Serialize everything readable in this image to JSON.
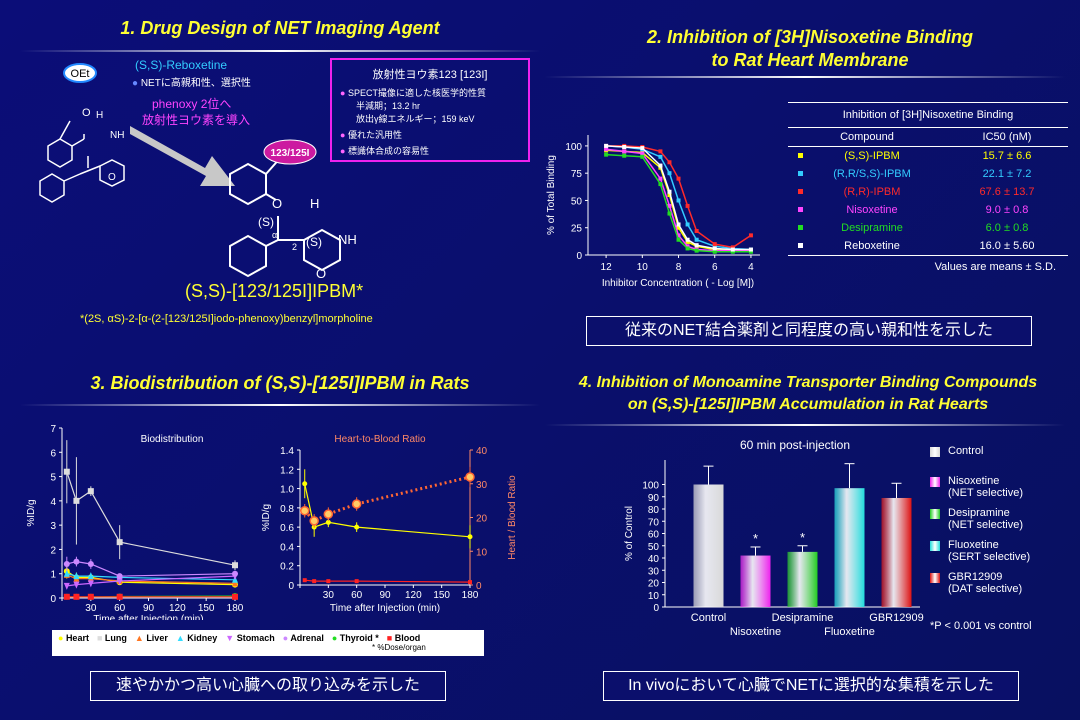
{
  "panel1": {
    "title": "1. Drug Design of NET Imaging Agent",
    "oet": "OEt",
    "reboxetine_label": "(S,S)-Reboxetine",
    "reboxetine_note": "NETに高親和性、選択性",
    "arrow_note1": "phenoxy 2位へ",
    "arrow_note2": "放射性ヨウ素を導入",
    "badge": "123/125I",
    "box_title": "放射性ヨウ素123  [123I]",
    "box_item1": "SPECT撮像に適した核医学的性質",
    "box_sub1": "半減期；13.2 hr",
    "box_sub2": "放出γ線エネルギー；159 keV",
    "box_item2": "優れた汎用性",
    "box_item3": "標識体合成の容易性",
    "compound_name": "(S,S)-[123/125I]IPBM*",
    "footnote": "*(2S, αS)-2-[α-(2-[123/125I]iodo-phenoxy)benzyl]morpholine",
    "struct_labels": {
      "o": "O",
      "h": "H",
      "s1": "(S)",
      "s2": "(S)",
      "nh": "NH",
      "alpha": "α",
      "two": "2",
      "o_ring": "O"
    }
  },
  "panel2": {
    "title_line1": "2. Inhibition of [3H]Nisoxetine Binding",
    "title_line2": "to Rat Heart Membrane",
    "table_header": "Inhibition of [3H]Nisoxetine Binding",
    "col_compound": "Compound",
    "col_ic50": "IC50 (nM)",
    "rows": [
      {
        "name": "(S,S)-IPBM",
        "ic50": "15.7 ± 6.6",
        "color": "#ffff00"
      },
      {
        "name": "(R,R/S,S)-IPBM",
        "ic50": "22.1 ± 7.2",
        "color": "#33ccff"
      },
      {
        "name": "(R,R)-IPBM",
        "ic50": "67.6 ± 13.7",
        "color": "#ff2a2a"
      },
      {
        "name": "Nisoxetine",
        "ic50": "9.0 ± 0.8",
        "color": "#ff44ff"
      },
      {
        "name": "Desipramine",
        "ic50": "6.0 ± 0.8",
        "color": "#22dd22"
      },
      {
        "name": "Reboxetine",
        "ic50": "16.0 ± 5.60",
        "color": "#ffffff"
      }
    ],
    "table_note": "Values are means ± S.D.",
    "summary": "従来のNET結合薬剤と同程度の高い親和性を示した"
  },
  "panel3": {
    "title": "3. Biodistribution of (S,S)-[125I]IPBM in Rats",
    "legend": [
      {
        "label": "Heart",
        "color": "#ffff00",
        "icon": "circle"
      },
      {
        "label": "Lung",
        "color": "#dddddd",
        "icon": "square"
      },
      {
        "label": "Liver",
        "color": "#ff7722",
        "icon": "triangle"
      },
      {
        "label": "Kidney",
        "color": "#33ddff",
        "icon": "triangle"
      },
      {
        "label": "Stomach",
        "color": "#cc66ff",
        "icon": "triangle-down"
      },
      {
        "label": "Adrenal",
        "color": "#cc88ff",
        "icon": "circle"
      },
      {
        "label": "Thyroid *",
        "color": "#22dd22",
        "icon": "circle"
      },
      {
        "label": "Blood",
        "color": "#ff2222",
        "icon": "square"
      }
    ],
    "legend_note": "* %Dose/organ",
    "summary": "速やかかつ高い心臓への取り込みを示した"
  },
  "panel4": {
    "title_line1": "4. Inhibition of Monoamine Transporter Binding Compounds",
    "title_line2": "on (S,S)-[125I]IPBM Accumulation in Rat Hearts",
    "legend": [
      {
        "label1": "Control",
        "label2": "",
        "color": "#d8d8d8"
      },
      {
        "label1": "Nisoxetine",
        "label2": "(NET selective)",
        "color": "#ee22ee"
      },
      {
        "label1": "Desipramine",
        "label2": "(NET selective)",
        "color": "#22cc22"
      },
      {
        "label1": "Fluoxetine",
        "label2": "(SERT selective)",
        "color": "#22dddd"
      },
      {
        "label1": "GBR12909",
        "label2": "(DAT selective)",
        "color": "#dd1111"
      }
    ],
    "pnote": "*P < 0.001  vs  control",
    "summary": "In vivoにおいて心臓でNETに選択的な集積を示した"
  },
  "chart_data": [
    {
      "type": "line",
      "id": "inhibition",
      "xlabel": "Inhibitor Concentration ( - Log [M])",
      "ylabel": "% of Total Binding",
      "xlim": [
        13,
        3.5
      ],
      "ylim": [
        0,
        110
      ],
      "xticks": [
        12,
        10,
        8,
        6,
        4
      ],
      "yticks": [
        0,
        25,
        50,
        75,
        100
      ],
      "series": [
        {
          "name": "(S,S)-IPBM",
          "color": "#ffff00",
          "x": [
            12,
            11,
            10,
            9,
            8.5,
            8,
            7.5,
            7,
            6,
            5,
            4
          ],
          "y": [
            96,
            95,
            94,
            80,
            55,
            25,
            12,
            8,
            5,
            4,
            5
          ]
        },
        {
          "name": "(R,R/S,S)-IPBM",
          "color": "#33ccff",
          "x": [
            12,
            11,
            10,
            9,
            8.5,
            8,
            7.5,
            7,
            6,
            5,
            4
          ],
          "y": [
            100,
            99,
            97,
            90,
            75,
            50,
            28,
            14,
            8,
            6,
            5
          ]
        },
        {
          "name": "(R,R)-IPBM",
          "color": "#ff2a2a",
          "x": [
            12,
            11,
            10,
            9,
            8.5,
            8,
            7.5,
            7,
            6,
            5,
            4
          ],
          "y": [
            100,
            100,
            99,
            95,
            85,
            70,
            45,
            22,
            10,
            7,
            18
          ]
        },
        {
          "name": "Nisoxetine",
          "color": "#ff44ff",
          "x": [
            12,
            11,
            10,
            9,
            8.5,
            8,
            7.5,
            7,
            6,
            5,
            4
          ],
          "y": [
            97,
            95,
            93,
            70,
            45,
            18,
            8,
            5,
            4,
            4,
            4
          ]
        },
        {
          "name": "Desipramine",
          "color": "#22dd22",
          "x": [
            12,
            11,
            10,
            9,
            8.5,
            8,
            7.5,
            7,
            6,
            5,
            4
          ],
          "y": [
            92,
            91,
            90,
            65,
            38,
            14,
            6,
            4,
            3,
            3,
            3
          ]
        },
        {
          "name": "Reboxetine",
          "color": "#ffffff",
          "x": [
            12,
            11,
            10,
            9,
            8.5,
            8,
            7.5,
            7,
            6,
            5,
            4
          ],
          "y": [
            100,
            99,
            98,
            82,
            58,
            28,
            14,
            9,
            6,
            5,
            5
          ]
        }
      ]
    },
    {
      "type": "line",
      "id": "biodistribution",
      "title": "Biodistribution",
      "xlabel": "Time after Injection (min)",
      "ylabel": "%ID/g",
      "xlim": [
        0,
        180
      ],
      "ylim": [
        0,
        7
      ],
      "xticks": [
        0,
        30,
        60,
        90,
        120,
        150,
        180
      ],
      "yticks": [
        0,
        1,
        2,
        3,
        4,
        5,
        6,
        7
      ],
      "x": [
        5,
        15,
        30,
        60,
        180
      ],
      "series": [
        {
          "name": "Heart",
          "color": "#ffff00",
          "marker": "circle",
          "values": [
            1.1,
            0.85,
            0.85,
            0.65,
            0.55
          ],
          "err": [
            0.3,
            0.2,
            0.15,
            0.1,
            0.1
          ]
        },
        {
          "name": "Lung",
          "color": "#dddddd",
          "marker": "square",
          "values": [
            5.2,
            4.0,
            4.4,
            2.3,
            1.35
          ],
          "err": [
            1.3,
            1.8,
            0.2,
            0.7,
            0.2
          ]
        },
        {
          "name": "Liver",
          "color": "#ff7722",
          "marker": "triangle",
          "values": [
            0.95,
            0.8,
            0.8,
            0.7,
            0.6
          ],
          "err": [
            0.1,
            0.1,
            0.1,
            0.1,
            0.1
          ]
        },
        {
          "name": "Kidney",
          "color": "#33ddff",
          "marker": "triangle",
          "values": [
            1.0,
            0.9,
            0.9,
            0.85,
            0.75
          ],
          "err": [
            0.1,
            0.1,
            0.1,
            0.1,
            0.1
          ]
        },
        {
          "name": "Stomach",
          "color": "#cc66ff",
          "marker": "triangle-down",
          "values": [
            0.5,
            0.55,
            0.6,
            0.7,
            0.9
          ],
          "err": [
            0.1,
            0.1,
            0.1,
            0.1,
            0.1
          ]
        },
        {
          "name": "Adrenal",
          "color": "#cc88ff",
          "marker": "circle",
          "values": [
            1.4,
            1.5,
            1.4,
            0.9,
            1.0
          ],
          "err": [
            0.3,
            0.2,
            0.2,
            0.1,
            0.1
          ]
        },
        {
          "name": "Thyroid *",
          "color": "#22dd22",
          "marker": "circle",
          "values": [
            0.05,
            0.05,
            0.05,
            0.06,
            0.08
          ],
          "err": [
            0,
            0,
            0,
            0,
            0
          ]
        },
        {
          "name": "Blood",
          "color": "#ff2222",
          "marker": "square",
          "values": [
            0.05,
            0.05,
            0.05,
            0.05,
            0.05
          ],
          "err": [
            0,
            0,
            0,
            0,
            0
          ]
        }
      ]
    },
    {
      "type": "line",
      "id": "heart_to_blood",
      "title": "Heart-to-Blood Ratio",
      "xlabel": "Time after Injection (min)",
      "ylabel": "%ID/g",
      "y2label": "Heart / Blood Ratio",
      "xlim": [
        0,
        180
      ],
      "ylim": [
        0,
        1.4
      ],
      "y2lim": [
        0,
        40
      ],
      "xticks": [
        0,
        30,
        60,
        90,
        120,
        150,
        180
      ],
      "yticks": [
        0,
        0.2,
        0.4,
        0.6,
        0.8,
        1.0,
        1.2,
        1.4
      ],
      "y2ticks": [
        0,
        10,
        20,
        30,
        40
      ],
      "x": [
        5,
        15,
        30,
        60,
        180
      ],
      "series": [
        {
          "name": "Heart",
          "axis": "left",
          "color": "#ffff00",
          "values": [
            1.05,
            0.6,
            0.65,
            0.6,
            0.5
          ],
          "err": [
            0.15,
            0.1,
            0.05,
            0.05,
            0.12
          ]
        },
        {
          "name": "Blood",
          "axis": "left",
          "color": "#ff2222",
          "values": [
            0.05,
            0.04,
            0.04,
            0.04,
            0.03
          ],
          "err": [
            0,
            0,
            0,
            0,
            0
          ]
        },
        {
          "name": "Heart / Blood Ratio",
          "axis": "right",
          "color": "#ff6633",
          "values": [
            22,
            19,
            21,
            24,
            32
          ],
          "err": [
            2,
            2,
            2,
            2,
            3
          ]
        }
      ]
    },
    {
      "type": "bar",
      "id": "inhibition_accumulation",
      "title": "60 min post-injection",
      "ylabel": "% of Control",
      "ylim": [
        0,
        120
      ],
      "yticks": [
        0,
        10,
        20,
        30,
        40,
        50,
        60,
        70,
        80,
        90,
        100
      ],
      "categories": [
        "Control",
        "Nisoxetine",
        "Desipramine",
        "Fluoxetine",
        "GBR12909"
      ],
      "values": [
        100,
        42,
        45,
        97,
        89
      ],
      "err": [
        15,
        7,
        5,
        20,
        12
      ],
      "significant": [
        false,
        true,
        true,
        false,
        false
      ],
      "colors": [
        "#d8d8d8",
        "#ee22ee",
        "#22cc22",
        "#22dddd",
        "#dd1111"
      ]
    }
  ]
}
